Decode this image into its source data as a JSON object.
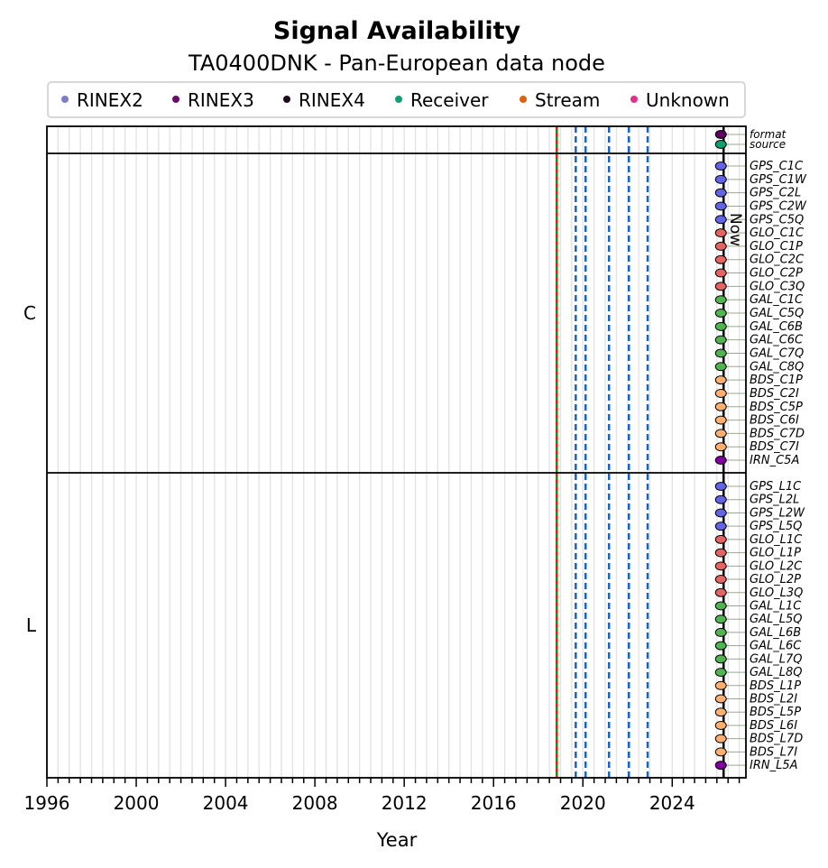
{
  "chart_data": {
    "type": "scatter",
    "title": "Signal Availability",
    "subtitle": "TA0400DNK - Pan-European data node",
    "xlabel": "Year",
    "xlim": [
      1996,
      2027.3
    ],
    "xticks": [
      "1996",
      "2000",
      "2004",
      "2008",
      "2012",
      "2016",
      "2020",
      "2024"
    ],
    "grid": true,
    "legend_placement": "top",
    "legend": [
      {
        "label": "RINEX2",
        "color": "#7b7bc8"
      },
      {
        "label": "RINEX3",
        "color": "#6a0a6a"
      },
      {
        "label": "RINEX4",
        "color": "#1a0a1a"
      },
      {
        "label": "Receiver",
        "color": "#10a070"
      },
      {
        "label": "Stream",
        "color": "#e06010"
      },
      {
        "label": "Unknown",
        "color": "#e0308a"
      }
    ],
    "now_label": "Now",
    "now_year": 2026.3,
    "event_line_year": 2018.83,
    "dashed_lines_years": [
      2019.68,
      2020.12,
      2021.17,
      2022.06,
      2022.9
    ],
    "groups": [
      {
        "label": "",
        "rows": [
          {
            "name": "format",
            "color": "#600060"
          },
          {
            "name": "source",
            "color": "#10a070"
          }
        ]
      },
      {
        "label": "C",
        "rows": [
          {
            "name": "GPS_C1C",
            "color": "#6464e6"
          },
          {
            "name": "GPS_C1W",
            "color": "#6464e6"
          },
          {
            "name": "GPS_C2L",
            "color": "#6464e6"
          },
          {
            "name": "GPS_C2W",
            "color": "#6464e6"
          },
          {
            "name": "GPS_C5Q",
            "color": "#6464e6"
          },
          {
            "name": "GLO_C1C",
            "color": "#e46464"
          },
          {
            "name": "GLO_C1P",
            "color": "#e46464"
          },
          {
            "name": "GLO_C2C",
            "color": "#e46464"
          },
          {
            "name": "GLO_C2P",
            "color": "#e46464"
          },
          {
            "name": "GLO_C3Q",
            "color": "#e46464"
          },
          {
            "name": "GAL_C1C",
            "color": "#50b450"
          },
          {
            "name": "GAL_C5Q",
            "color": "#50b450"
          },
          {
            "name": "GAL_C6B",
            "color": "#50b450"
          },
          {
            "name": "GAL_C6C",
            "color": "#50b450"
          },
          {
            "name": "GAL_C7Q",
            "color": "#50b450"
          },
          {
            "name": "GAL_C8Q",
            "color": "#50b450"
          },
          {
            "name": "BDS_C1P",
            "color": "#ffb070"
          },
          {
            "name": "BDS_C2I",
            "color": "#ffb070"
          },
          {
            "name": "BDS_C5P",
            "color": "#ffb070"
          },
          {
            "name": "BDS_C6I",
            "color": "#ffb070"
          },
          {
            "name": "BDS_C7D",
            "color": "#ffb070"
          },
          {
            "name": "BDS_C7I",
            "color": "#ffb070"
          },
          {
            "name": "IRN_C5A",
            "color": "#8000a0"
          }
        ]
      },
      {
        "label": "L",
        "rows": [
          {
            "name": "GPS_L1C",
            "color": "#6464e6"
          },
          {
            "name": "GPS_L2L",
            "color": "#6464e6"
          },
          {
            "name": "GPS_L2W",
            "color": "#6464e6"
          },
          {
            "name": "GPS_L5Q",
            "color": "#6464e6"
          },
          {
            "name": "GLO_L1C",
            "color": "#e46464"
          },
          {
            "name": "GLO_L1P",
            "color": "#e46464"
          },
          {
            "name": "GLO_L2C",
            "color": "#e46464"
          },
          {
            "name": "GLO_L2P",
            "color": "#e46464"
          },
          {
            "name": "GLO_L3Q",
            "color": "#e46464"
          },
          {
            "name": "GAL_L1C",
            "color": "#50b450"
          },
          {
            "name": "GAL_L5Q",
            "color": "#50b450"
          },
          {
            "name": "GAL_L6B",
            "color": "#50b450"
          },
          {
            "name": "GAL_L6C",
            "color": "#50b450"
          },
          {
            "name": "GAL_L7Q",
            "color": "#50b450"
          },
          {
            "name": "GAL_L8Q",
            "color": "#50b450"
          },
          {
            "name": "BDS_L1P",
            "color": "#ffb070"
          },
          {
            "name": "BDS_L2I",
            "color": "#ffb070"
          },
          {
            "name": "BDS_L5P",
            "color": "#ffb070"
          },
          {
            "name": "BDS_L6I",
            "color": "#ffb070"
          },
          {
            "name": "BDS_L7D",
            "color": "#ffb070"
          },
          {
            "name": "BDS_L7I",
            "color": "#ffb070"
          },
          {
            "name": "IRN_L5A",
            "color": "#8000a0"
          }
        ]
      }
    ]
  }
}
